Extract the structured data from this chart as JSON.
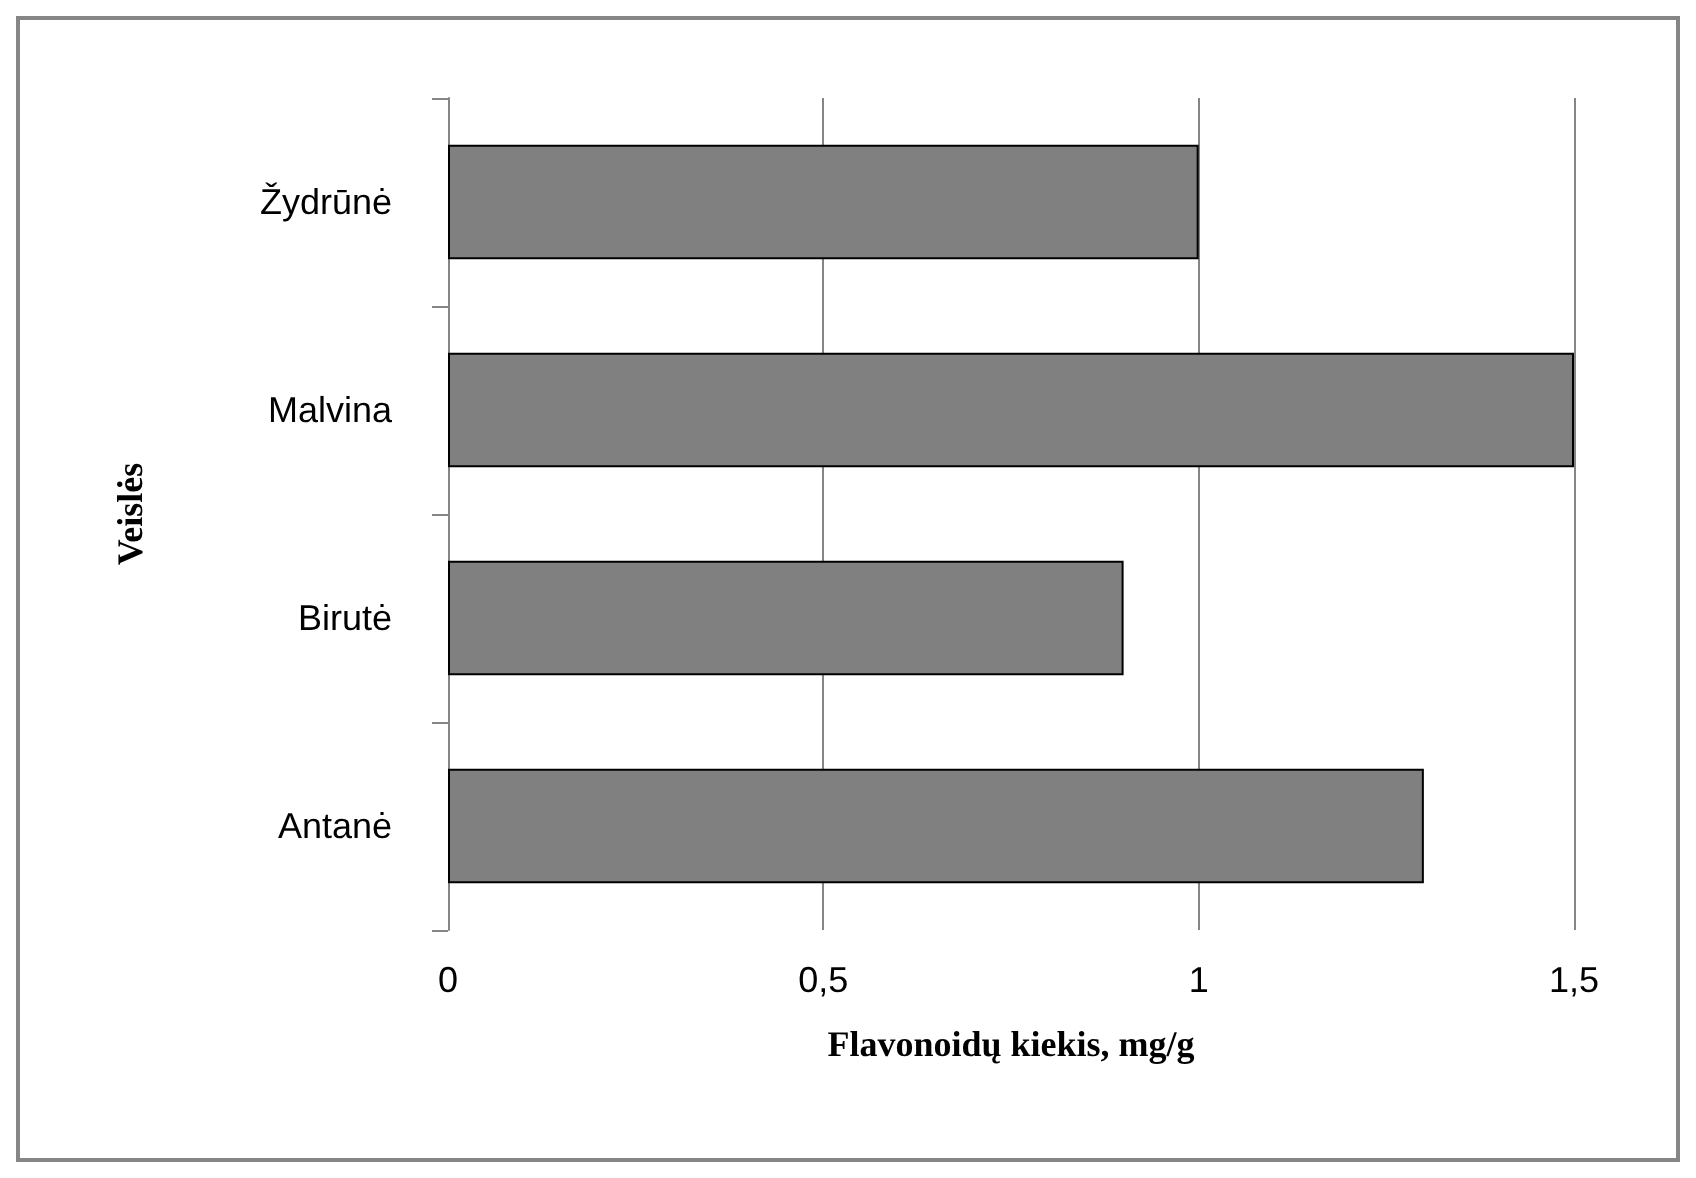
{
  "chart_data": {
    "type": "bar",
    "orientation": "horizontal",
    "xlabel": "Flavonoidų kiekis, mg/g",
    "ylabel": "Veislės",
    "categories": [
      "Žydrūnė",
      "Malvina",
      "Birutė",
      "Antanė"
    ],
    "values": [
      1.0,
      1.5,
      0.9,
      1.3
    ],
    "color": "#808080",
    "xlim": [
      0,
      1.5
    ],
    "xticks": [
      {
        "value": 0,
        "label": "0"
      },
      {
        "value": 0.5,
        "label": "0,5"
      },
      {
        "value": 1,
        "label": "1"
      },
      {
        "value": 1.5,
        "label": "1,5"
      }
    ],
    "grid": "x"
  }
}
